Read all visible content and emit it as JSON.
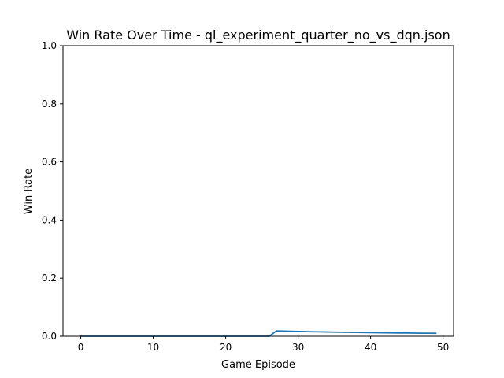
{
  "chart_data": {
    "type": "line",
    "title": "Win Rate Over Time - ql_experiment_quarter_no_vs_dqn.json",
    "xlabel": "Game Episode",
    "ylabel": "Win Rate",
    "xlim": [
      -2.45,
      51.45
    ],
    "ylim": [
      0,
      1
    ],
    "xticks": [
      0,
      10,
      20,
      30,
      40,
      50
    ],
    "yticks": [
      0.0,
      0.2,
      0.4,
      0.6,
      0.8,
      1.0
    ],
    "xtick_labels": [
      "0",
      "10",
      "20",
      "30",
      "40",
      "50"
    ],
    "ytick_labels": [
      "0.0",
      "0.2",
      "0.4",
      "0.6",
      "0.8",
      "1.0"
    ],
    "grid": false,
    "series": [
      {
        "name": "Win Rate",
        "color": "#1f77b4",
        "x": [
          0,
          1,
          2,
          3,
          4,
          5,
          6,
          7,
          8,
          9,
          10,
          11,
          12,
          13,
          14,
          15,
          16,
          17,
          18,
          19,
          20,
          21,
          22,
          23,
          24,
          25,
          26,
          27,
          28,
          29,
          30,
          31,
          32,
          33,
          34,
          35,
          36,
          37,
          38,
          39,
          40,
          41,
          42,
          43,
          44,
          45,
          46,
          47,
          48,
          49
        ],
        "y": [
          0,
          0,
          0,
          0,
          0,
          0,
          0,
          0,
          0,
          0,
          0,
          0,
          0,
          0,
          0,
          0,
          0,
          0,
          0,
          0,
          0,
          0,
          0,
          0,
          0,
          0,
          0,
          0.0185,
          0.0179,
          0.0172,
          0.0167,
          0.0161,
          0.0156,
          0.0152,
          0.0147,
          0.0143,
          0.0139,
          0.0135,
          0.0132,
          0.0128,
          0.0125,
          0.0122,
          0.0119,
          0.0116,
          0.0114,
          0.0111,
          0.0109,
          0.0106,
          0.0104,
          0.0102
        ]
      }
    ]
  }
}
